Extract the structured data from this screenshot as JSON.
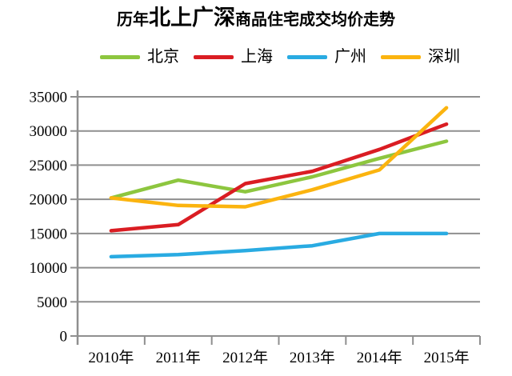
{
  "title": {
    "prefix": "历年",
    "highlight": "北上广深",
    "suffix": "商品住宅成交均价走势",
    "full": "历年北上广深商品住宅成交均价走势"
  },
  "chart_data": {
    "type": "line",
    "title": "历年北上广深商品住宅成交均价走势",
    "categories": [
      "2010年",
      "2011年",
      "2012年",
      "2013年",
      "2014年",
      "2015年"
    ],
    "series": [
      {
        "name": "北京",
        "slug": "beijing",
        "color": "#8dc63f",
        "values": [
          20200,
          22800,
          21100,
          23300,
          26000,
          28500
        ]
      },
      {
        "name": "上海",
        "slug": "shanghai",
        "color": "#da1d23",
        "values": [
          15400,
          16300,
          22300,
          24100,
          27300,
          31000
        ]
      },
      {
        "name": "广州",
        "slug": "guangzhou",
        "color": "#29abe2",
        "values": [
          11600,
          11900,
          12500,
          13200,
          15000,
          15000
        ]
      },
      {
        "name": "深圳",
        "slug": "shenzhen",
        "color": "#fbb40f",
        "values": [
          20200,
          19100,
          18900,
          21400,
          24300,
          33400
        ]
      }
    ],
    "ylim": [
      0,
      35000
    ],
    "y_ticks": [
      0,
      5000,
      10000,
      15000,
      20000,
      25000,
      30000,
      35000
    ],
    "grid": true,
    "legend_position": "top"
  },
  "colors": {
    "grid": "#8f8f8f",
    "axis": "#8f8f8f",
    "text": "#000000",
    "background": "#ffffff"
  }
}
